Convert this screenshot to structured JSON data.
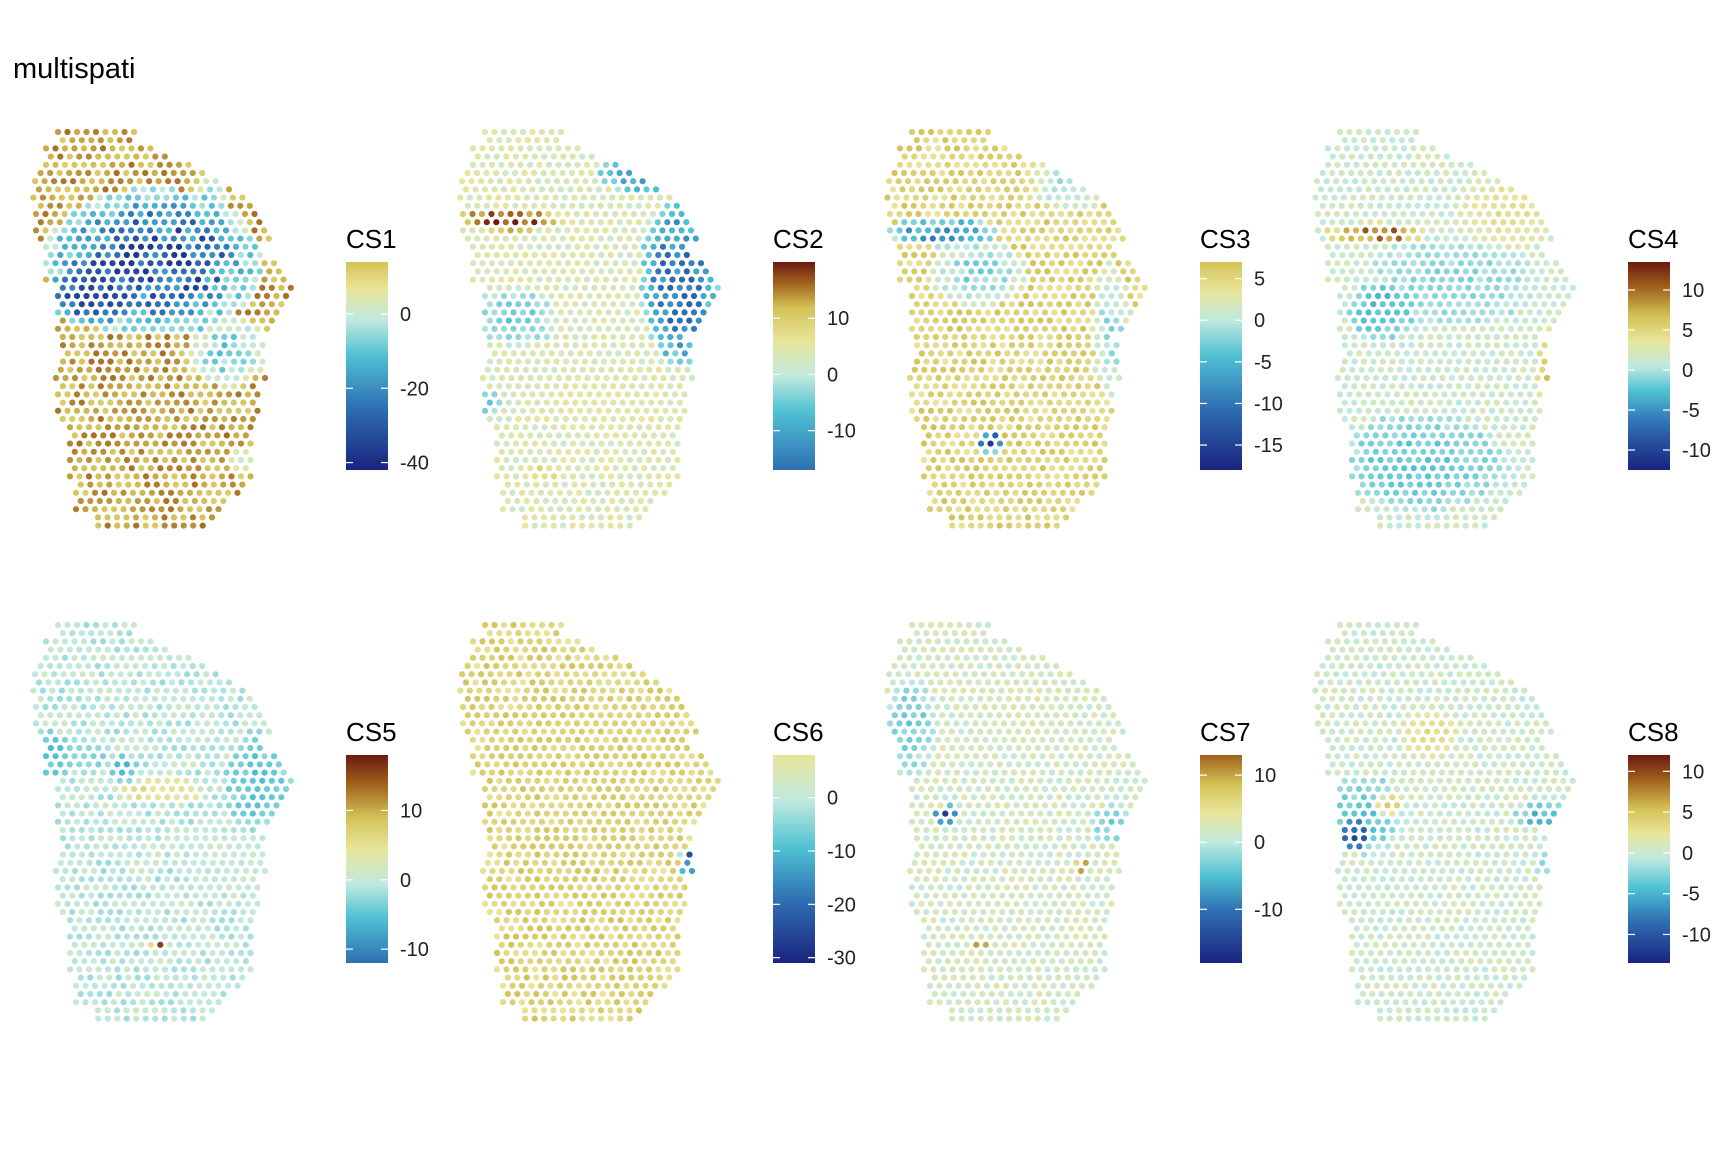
{
  "title": "multispati",
  "colors": {
    "dark_blue": "#1a237e",
    "mid_blue": "#2f6fb3",
    "cyan": "#4fc1d3",
    "pale_cyan": "#bfe9df",
    "pale_yellow": "#e8e59a",
    "mustard": "#d4c256",
    "brown": "#a0611c",
    "dark_red": "#6b1a0f"
  },
  "chart_data": [
    {
      "type": "heatmap",
      "legend": {
        "title": "CS1",
        "ticks": [
          0,
          -20,
          -40
        ],
        "range": [
          -42,
          14
        ]
      },
      "dominant": "mustard"
    },
    {
      "type": "heatmap",
      "legend": {
        "title": "CS2",
        "ticks": [
          10,
          0,
          -10
        ],
        "range": [
          -17,
          20
        ]
      },
      "dominant": "pale"
    },
    {
      "type": "heatmap",
      "legend": {
        "title": "CS3",
        "ticks": [
          5,
          0,
          -5,
          -10,
          -15
        ],
        "range": [
          -18,
          7
        ]
      },
      "dominant": "pale"
    },
    {
      "type": "heatmap",
      "legend": {
        "title": "CS4",
        "ticks": [
          10,
          5,
          0,
          -5,
          -10
        ],
        "range": [
          -12.5,
          13.5
        ]
      },
      "dominant": "pale"
    },
    {
      "type": "heatmap",
      "legend": {
        "title": "CS5",
        "ticks": [
          10,
          0,
          -10
        ],
        "range": [
          -12,
          18
        ]
      },
      "dominant": "pale"
    },
    {
      "type": "heatmap",
      "legend": {
        "title": "CS6",
        "ticks": [
          0,
          -10,
          -20,
          -30
        ],
        "range": [
          -31,
          8
        ]
      },
      "dominant": "pale"
    },
    {
      "type": "heatmap",
      "legend": {
        "title": "CS7",
        "ticks": [
          10,
          0,
          -10
        ],
        "range": [
          -18,
          13
        ]
      },
      "dominant": "pale"
    },
    {
      "type": "heatmap",
      "legend": {
        "title": "CS8",
        "ticks": [
          10,
          5,
          0,
          -5,
          -10
        ],
        "range": [
          -13.5,
          12
        ]
      },
      "dominant": "pale"
    }
  ]
}
